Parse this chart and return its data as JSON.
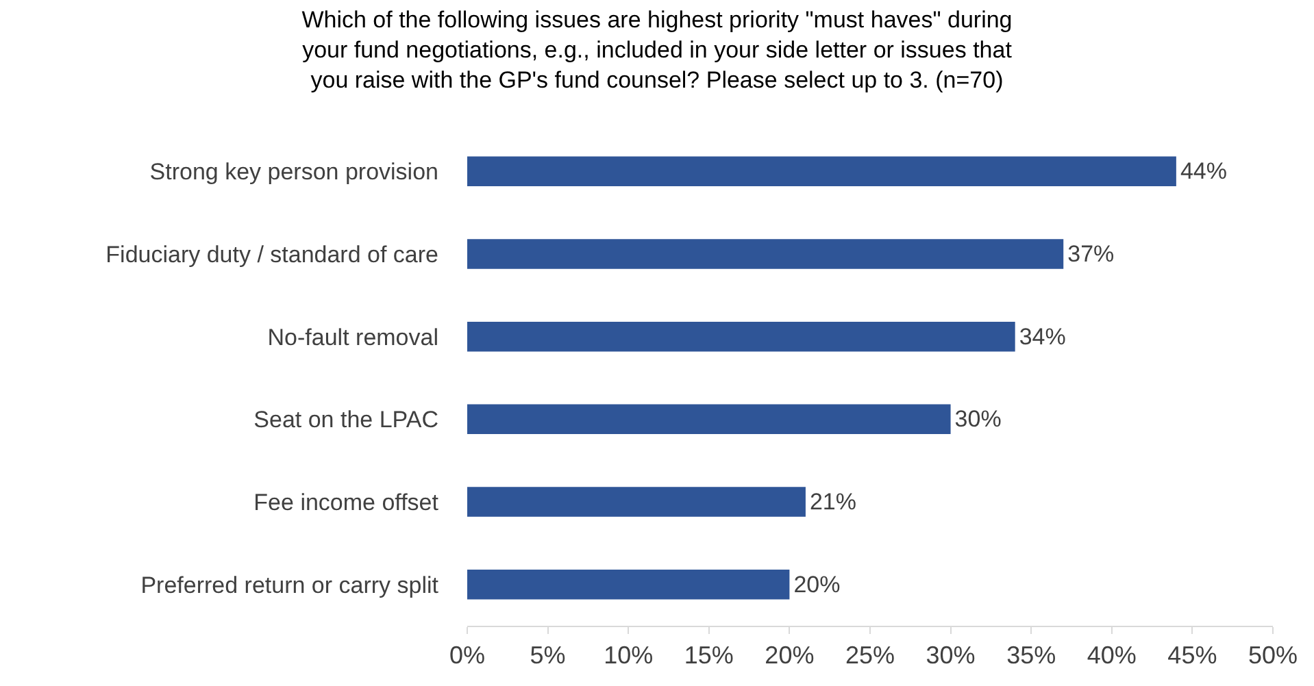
{
  "chart_data": {
    "type": "bar",
    "orientation": "horizontal",
    "title": "Which of the following issues are highest priority \"must haves\" during\nyour fund negotiations, e.g., included in your side letter or issues that\nyou raise with the GP's fund counsel? Please select up to 3. (n=70)",
    "categories": [
      "Strong key person provision",
      "Fiduciary duty / standard of care",
      "No-fault removal",
      "Seat on the LPAC",
      "Fee income offset",
      "Preferred return or carry split"
    ],
    "values": [
      44,
      37,
      34,
      30,
      21,
      20
    ],
    "value_labels": [
      "44%",
      "37%",
      "34%",
      "30%",
      "21%",
      "20%"
    ],
    "color": "#2f5597",
    "xlim": [
      0,
      50
    ],
    "xticks": [
      {
        "value": 0,
        "label": "0%"
      },
      {
        "value": 5,
        "label": "5%"
      },
      {
        "value": 10,
        "label": "10%"
      },
      {
        "value": 15,
        "label": "15%"
      },
      {
        "value": 20,
        "label": "20%"
      },
      {
        "value": 25,
        "label": "25%"
      },
      {
        "value": 30,
        "label": "30%"
      },
      {
        "value": 35,
        "label": "35%"
      },
      {
        "value": 40,
        "label": "40%"
      },
      {
        "value": 45,
        "label": "45%"
      },
      {
        "value": 50,
        "label": "50%"
      }
    ],
    "grid": false
  }
}
